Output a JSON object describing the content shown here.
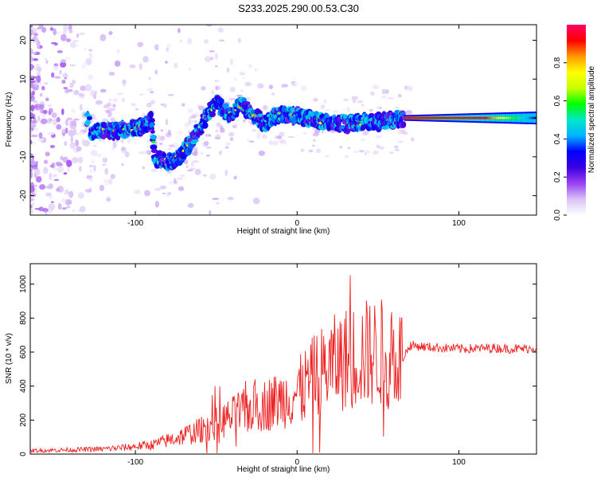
{
  "page_title": "S233.2025.290.00.53.C30",
  "chart_data": [
    {
      "type": "heatmap",
      "title": "S233.2025.290.00.53.C30",
      "xlabel": "Height of straight line (km)",
      "ylabel": "Frequency (Hz)",
      "xlim": [
        -165,
        148
      ],
      "ylim": [
        -25,
        24
      ],
      "xticks": [
        -100,
        0,
        100
      ],
      "xtick_labels": [
        "-100",
        "0",
        "100"
      ],
      "yticks": [
        -20,
        -10,
        0,
        10,
        20
      ],
      "ytick_labels": [
        "-20",
        "-10",
        "0",
        "10",
        "20"
      ],
      "colorbar": {
        "label": "Normalized spectral amplitude",
        "range": [
          0,
          1
        ],
        "ticks": [
          0.0,
          0.2,
          0.4,
          0.6,
          0.8
        ],
        "tick_labels": [
          "0.0",
          "0.2",
          "0.4",
          "0.6",
          "0.8"
        ],
        "colors": [
          "#ffffff",
          "#d9c2f5",
          "#9b42f5",
          "#3b00e0",
          "#0000ff",
          "#00b4ff",
          "#00e6c8",
          "#00ff00",
          "#c8ff00",
          "#ffff00",
          "#ff9900",
          "#ff0000",
          "#ff0066"
        ]
      },
      "ridge": {
        "x": [
          -128,
          -110,
          -95,
          -90,
          -88,
          -80,
          -72,
          -62,
          -55,
          -50,
          -42,
          -35,
          -28,
          -20,
          -12,
          -5,
          0,
          10,
          20,
          30,
          40,
          50,
          60,
          65,
          70,
          90,
          110,
          130,
          147
        ],
        "y": [
          -3.5,
          -3.2,
          -2,
          -0.5,
          -10.5,
          -11.5,
          -10,
          -4,
          1,
          4,
          0.5,
          3.5,
          1,
          -1.5,
          1,
          0.5,
          0.5,
          -0.5,
          -1,
          -1.5,
          -1,
          -1,
          -0.5,
          0,
          0,
          0,
          0,
          -0.5,
          -0.5
        ]
      }
    },
    {
      "type": "line",
      "title": "",
      "xlabel": "Height of straight line (km)",
      "ylabel": "SNR (10 * v/v)",
      "xlim": [
        -165,
        148
      ],
      "ylim": [
        0,
        1120
      ],
      "xticks": [
        -100,
        0,
        100
      ],
      "xtick_labels": [
        "-100",
        "0",
        "100"
      ],
      "yticks": [
        0,
        200,
        400,
        600,
        800,
        1000
      ],
      "ytick_labels": [
        "0",
        "200",
        "400",
        "600",
        "800",
        "1000"
      ],
      "color": "#ee2020",
      "series": [
        {
          "name": "SNR",
          "x": [
            -165,
            -140,
            -120,
            -105,
            -90,
            -80,
            -70,
            -60,
            -50,
            -40,
            -30,
            -20,
            -10,
            0,
            10,
            20,
            30,
            40,
            50,
            60,
            65,
            70,
            80,
            90,
            100,
            110,
            120,
            130,
            140,
            148
          ],
          "y": [
            20,
            25,
            30,
            40,
            55,
            80,
            110,
            140,
            180,
            220,
            260,
            290,
            320,
            360,
            450,
            520,
            560,
            590,
            600,
            580,
            560,
            640,
            630,
            625,
            620,
            620,
            625,
            620,
            620,
            625
          ]
        }
      ]
    }
  ]
}
